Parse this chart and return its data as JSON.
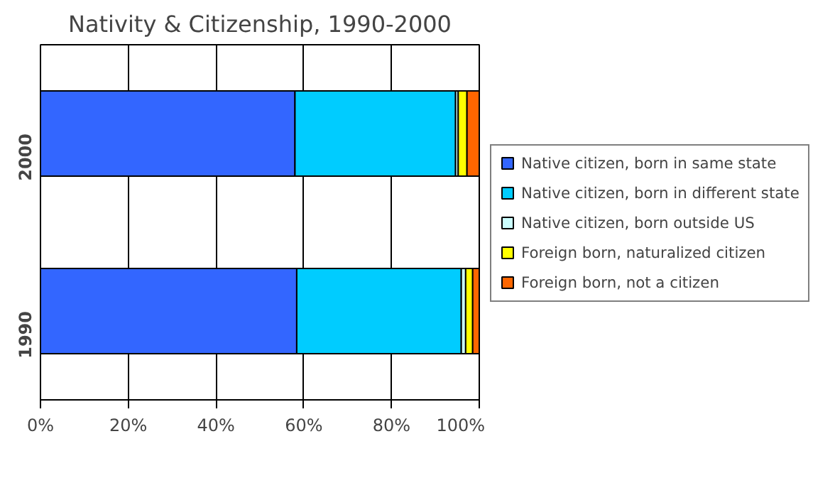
{
  "chart_data": {
    "type": "bar",
    "orientation": "horizontal",
    "stacked": true,
    "title": "Nativity & Citizenship, 1990-2000",
    "categories": [
      "2000",
      "1990"
    ],
    "series": [
      {
        "name": "Native citizen, born in same state",
        "color": "#3366ff",
        "values": [
          58.0,
          58.4
        ]
      },
      {
        "name": "Native citizen, born in different state",
        "color": "#00ccff",
        "values": [
          36.6,
          37.5
        ]
      },
      {
        "name": "Native citizen, born outside US",
        "color": "#ccffff",
        "values": [
          0.6,
          1.0
        ]
      },
      {
        "name": "Foreign born, naturalized citizen",
        "color": "#ffff00",
        "values": [
          2.0,
          1.6
        ]
      },
      {
        "name": "Foreign born, not a citizen",
        "color": "#ff6600",
        "values": [
          2.8,
          1.5
        ]
      }
    ],
    "xlim": [
      0,
      100
    ],
    "xticks": [
      {
        "value": 0,
        "label": "0%"
      },
      {
        "value": 20,
        "label": "20%"
      },
      {
        "value": 40,
        "label": "40%"
      },
      {
        "value": 60,
        "label": "60%"
      },
      {
        "value": 80,
        "label": "80%"
      },
      {
        "value": 100,
        "label": "100%"
      }
    ],
    "grid": "x",
    "legend": "right"
  }
}
